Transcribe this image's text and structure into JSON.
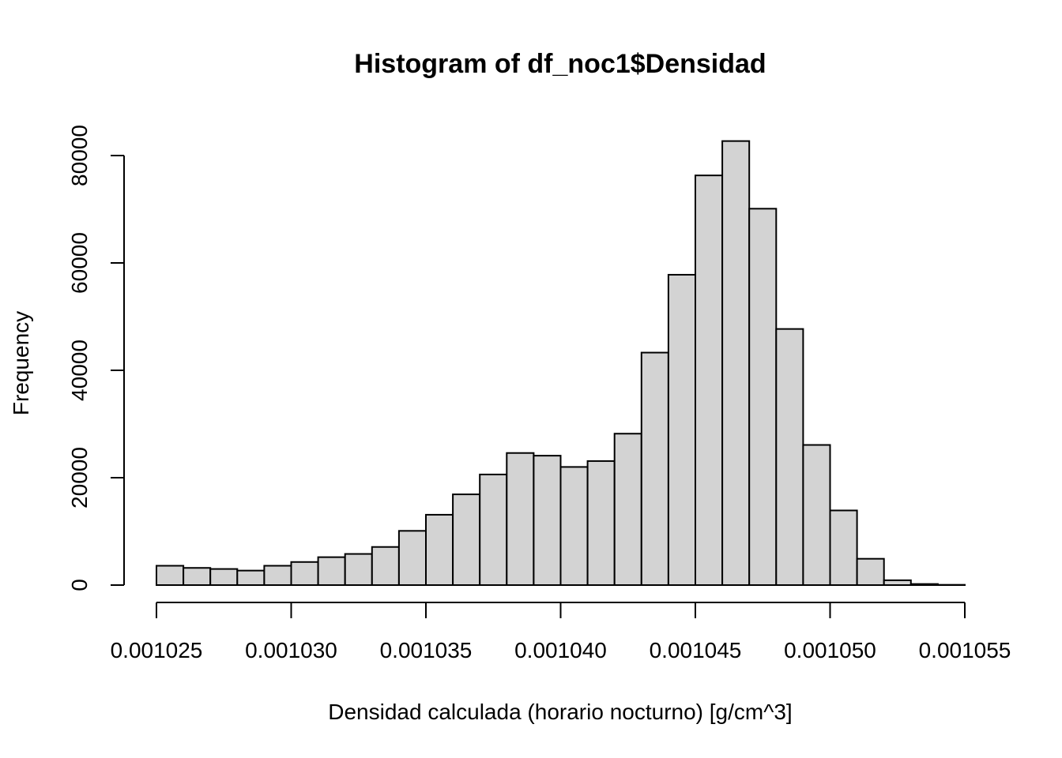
{
  "chart_data": {
    "type": "bar",
    "title": "Histogram of df_noc1$Densidad",
    "xlabel": "Densidad calculada (horario nocturno) [g/cm^3]",
    "ylabel": "Frequency",
    "bar_color": "#d3d3d3",
    "xlim": [
      0.001025,
      0.001055
    ],
    "ylim": [
      0,
      80000
    ],
    "x_ticks": [
      0.001025,
      0.00103,
      0.001035,
      0.00104,
      0.001045,
      0.00105,
      0.001055
    ],
    "x_tick_labels": [
      "0.001025",
      "0.001030",
      "0.001035",
      "0.001040",
      "0.001045",
      "0.001050",
      "0.001055"
    ],
    "y_ticks": [
      0,
      20000,
      40000,
      60000,
      80000
    ],
    "y_tick_labels": [
      "0",
      "20000",
      "40000",
      "60000",
      "80000"
    ],
    "bin_width": 1e-06,
    "bin_start": 0.001025,
    "values": [
      3600,
      3200,
      3000,
      2700,
      3600,
      4300,
      5200,
      5800,
      7100,
      10100,
      13100,
      16900,
      20600,
      24600,
      24100,
      22000,
      23100,
      28200,
      43300,
      57800,
      76300,
      82700,
      70100,
      47700,
      26100,
      13900,
      4900,
      900,
      200,
      50
    ]
  }
}
